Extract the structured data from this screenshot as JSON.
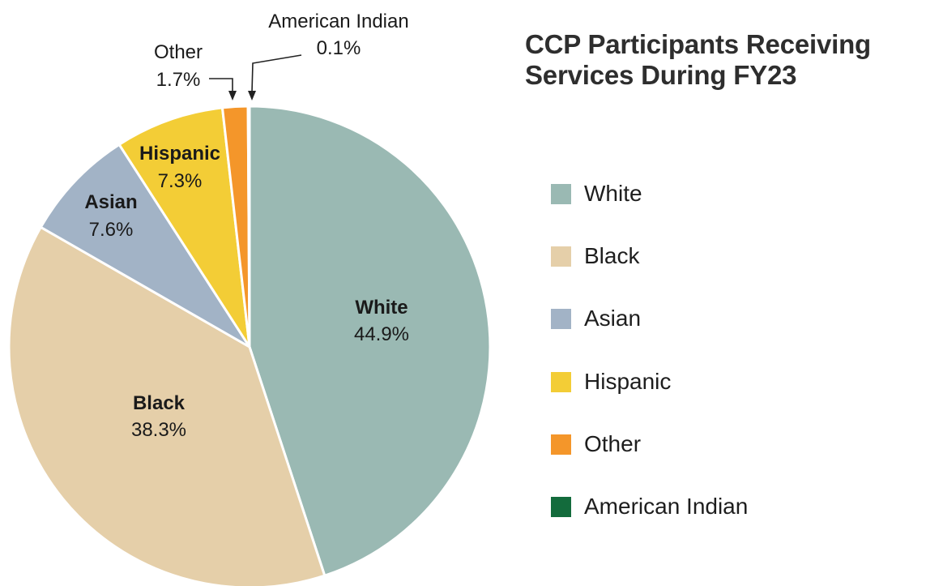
{
  "chart_data": {
    "type": "pie",
    "title": "CCP Participants Receiving Services During FY23",
    "title_lines": [
      "CCP Participants Receiving",
      "Services During FY23"
    ],
    "slices": [
      {
        "label": "White",
        "value": 44.9,
        "display": "44.9%",
        "color": "#9ab9b3"
      },
      {
        "label": "Black",
        "value": 38.3,
        "display": "38.3%",
        "color": "#e5cfa9"
      },
      {
        "label": "Asian",
        "value": 7.6,
        "display": "7.6%",
        "color": "#a2b3c6"
      },
      {
        "label": "Hispanic",
        "value": 7.3,
        "display": "7.3%",
        "color": "#f3cd36"
      },
      {
        "label": "Other",
        "value": 1.7,
        "display": "1.7%",
        "color": "#f4962a"
      },
      {
        "label": "American Indian",
        "value": 0.1,
        "display": "0.1%",
        "color": "#136b3c"
      }
    ],
    "legend_position": "right",
    "start": "12 o'clock",
    "direction": "clockwise"
  }
}
